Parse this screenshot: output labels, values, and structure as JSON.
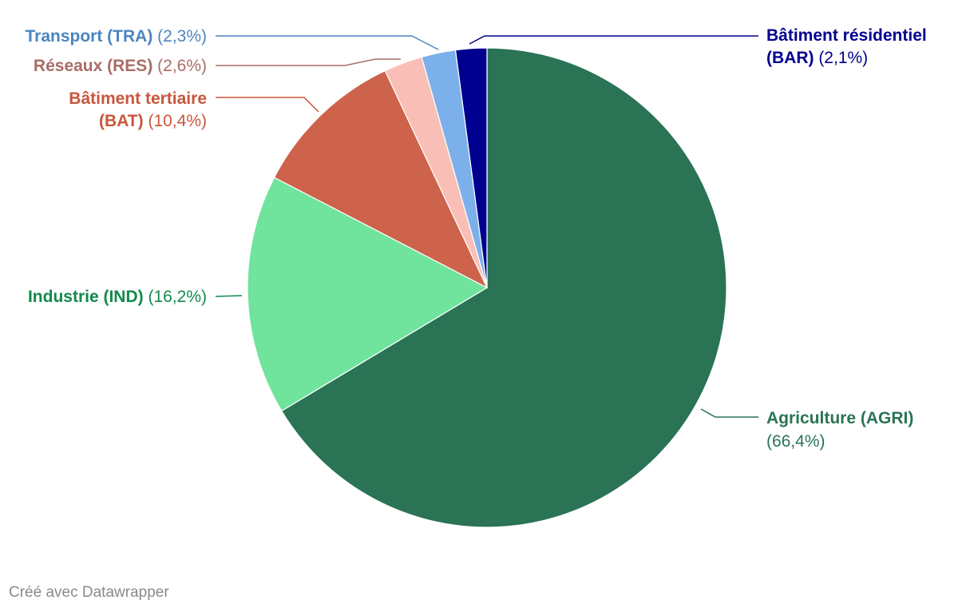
{
  "chart_data": {
    "type": "pie",
    "slices": [
      {
        "name": "Agriculture (AGRI)",
        "pct_label": "(66,4%)",
        "value": 66.4,
        "color": "#2a7355",
        "text_color": "#2a7355"
      },
      {
        "name": "Industrie (IND)",
        "pct_label": "(16,2%)",
        "value": 16.2,
        "color": "#70e39c",
        "text_color": "#13894b"
      },
      {
        "name": "Bâtiment tertiaire (BAT)",
        "pct_label": "(10,4%)",
        "value": 10.4,
        "color": "#cd634a",
        "text_color": "#c9563c"
      },
      {
        "name": "Réseaux (RES)",
        "pct_label": "(2,6%)",
        "value": 2.6,
        "color": "#f9bfb7",
        "text_color": "#a86d66"
      },
      {
        "name": "Transport (TRA)",
        "pct_label": "(2,3%)",
        "value": 2.3,
        "color": "#7cb0ea",
        "text_color": "#4a86bf"
      },
      {
        "name": "Bâtiment résidentiel (BAR)",
        "pct_label": "(2,1%)",
        "value": 2.1,
        "color": "#000090",
        "text_color": "#000090"
      }
    ]
  },
  "footer": "Créé avec Datawrapper"
}
